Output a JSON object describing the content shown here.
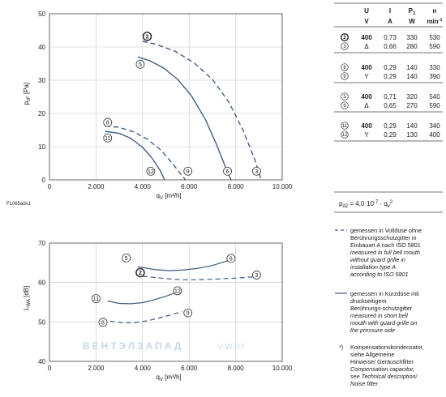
{
  "sheet_code": "FL065ads1",
  "colors": {
    "curve": "#3b5a86",
    "grid": "#c8c8c8",
    "frame": "#444444"
  },
  "table": {
    "headers": [
      "U",
      "I",
      "P1",
      "n"
    ],
    "units": [
      "V",
      "A",
      "W",
      "min-1"
    ],
    "groups": [
      [
        {
          "mark": "2",
          "mark_bold": true,
          "conn": "",
          "U": "400",
          "I": "0,73",
          "P": "330",
          "n": "530"
        },
        {
          "mark": "3",
          "mark_bold": false,
          "conn": "Δ",
          "U": "",
          "I": "0,66",
          "P": "280",
          "n": "590"
        }
      ],
      [
        {
          "mark": "8",
          "mark_bold": false,
          "conn": "",
          "U": "400",
          "I": "0,29",
          "P": "140",
          "n": "330"
        },
        {
          "mark": "9",
          "mark_bold": false,
          "conn": "Y",
          "U": "",
          "I": "0,29",
          "P": "140",
          "n": "390"
        }
      ],
      [
        {
          "mark": "5",
          "mark_bold": false,
          "conn": "",
          "U": "400",
          "I": "0,71",
          "P": "320",
          "n": "540"
        },
        {
          "mark": "6",
          "mark_bold": false,
          "conn": "Δ",
          "U": "",
          "I": "0,65",
          "P": "270",
          "n": "590"
        }
      ],
      [
        {
          "mark": "11",
          "mark_bold": false,
          "conn": "",
          "U": "400",
          "I": "0,29",
          "P": "140",
          "n": "340"
        },
        {
          "mark": "12",
          "mark_bold": false,
          "conn": "Y",
          "U": "",
          "I": "0,29",
          "P": "130",
          "n": "400"
        }
      ]
    ],
    "formula": "pd2 = 4,0·10-7 · qv2"
  },
  "legend": {
    "dashed": {
      "de": "gemessen in Volldüse ohne Berührungsschutzgitter in Einbauart A nach ISO 5801",
      "en": "measured in full bell mouth without guard grille in installation type A according to ISO 5801"
    },
    "solid": {
      "de": "gemessen in Kurzdüse mit druckseitigem Berührungs-schutzgitter",
      "en": "measured in short bell mouth with guard grille on the pressure side"
    },
    "footnote_mark": "*)",
    "footnote": {
      "de": "Kompensationskondensator, siehe Allgemeine Hinweise/ Geräuschfilter",
      "en": "Compensation capacitor, see Technical description/ Noise filter"
    }
  },
  "watermark": {
    "brand": "ВЕНТЭЛЗАПАД",
    "site": "V-W.BY"
  },
  "chart_data": [
    {
      "type": "line",
      "title": "",
      "xlabel": "qV [m³/h]",
      "ylabel": "psF [Pa]",
      "xlim": [
        0,
        10000
      ],
      "ylim": [
        0,
        50
      ],
      "xticks": [
        0,
        2000,
        4000,
        6000,
        8000,
        10000
      ],
      "xtick_labels": [
        "0",
        "2.000",
        "4.000",
        "6.000",
        "8.000",
        "10.000"
      ],
      "yticks": [
        0,
        10,
        20,
        30,
        40,
        50
      ],
      "grid": true,
      "series": [
        {
          "name": "2",
          "style": "dashed",
          "x": [
            4000,
            4600,
            5400,
            6200,
            7000,
            7700,
            8300,
            8800,
            9100
          ],
          "y": [
            41.7,
            40.8,
            38.7,
            35.3,
            30.3,
            23.5,
            15.2,
            6.5,
            0
          ]
        },
        {
          "name": "3",
          "style": "dashed",
          "x": [
            4000,
            4600,
            5400,
            6200,
            7000,
            7700,
            8300,
            8800,
            9100
          ],
          "y": [
            41.7,
            40.8,
            38.7,
            35.3,
            30.3,
            23.5,
            15.2,
            6.5,
            0
          ]
        },
        {
          "name": "5",
          "style": "solid",
          "x": [
            3800,
            4300,
            4900,
            5500,
            6100,
            6700,
            7200,
            7600,
            7800
          ],
          "y": [
            37.0,
            35.9,
            33.7,
            30.3,
            25.3,
            18.2,
            10.3,
            3.2,
            0
          ]
        },
        {
          "name": "6",
          "style": "solid",
          "x": [
            3800,
            4300,
            4900,
            5500,
            6100,
            6700,
            7200,
            7600,
            7800
          ],
          "y": [
            37.0,
            35.9,
            33.7,
            30.3,
            25.3,
            18.2,
            10.3,
            3.2,
            0
          ]
        },
        {
          "name": "8",
          "style": "dashed",
          "x": [
            2400,
            3000,
            3600,
            4200,
            4800,
            5300,
            5700,
            5850
          ],
          "y": [
            16.2,
            15.8,
            14.5,
            12.3,
            8.9,
            4.8,
            1.2,
            0
          ]
        },
        {
          "name": "9",
          "style": "dashed",
          "x": [
            2400,
            3000,
            3600,
            4200,
            4800,
            5300,
            5700,
            5850
          ],
          "y": [
            16.2,
            15.8,
            14.5,
            12.3,
            8.9,
            4.8,
            1.2,
            0
          ]
        },
        {
          "name": "11",
          "style": "solid",
          "x": [
            2400,
            3000,
            3500,
            4000,
            4400,
            4750,
            4950
          ],
          "y": [
            14.6,
            14.0,
            12.5,
            9.8,
            6.6,
            2.9,
            0
          ]
        },
        {
          "name": "12",
          "style": "solid",
          "x": [
            2400,
            3000,
            3500,
            4000,
            4400,
            4750,
            4950
          ],
          "y": [
            14.6,
            14.0,
            12.5,
            9.8,
            6.6,
            2.9,
            0
          ]
        }
      ],
      "markers": [
        {
          "label": "2",
          "bold": true,
          "x": 4200,
          "y": 43.2
        },
        {
          "label": "5",
          "bold": false,
          "x": 3900,
          "y": 34.8
        },
        {
          "label": "8",
          "bold": false,
          "x": 2500,
          "y": 17.3
        },
        {
          "label": "11",
          "bold": false,
          "x": 2500,
          "y": 12.6
        },
        {
          "label": "12",
          "bold": false,
          "x": 4350,
          "y": 2.6
        },
        {
          "label": "9",
          "bold": false,
          "x": 5950,
          "y": 2.6
        },
        {
          "label": "6",
          "bold": false,
          "x": 7650,
          "y": 2.6
        },
        {
          "label": "3",
          "bold": false,
          "x": 8900,
          "y": 2.6
        }
      ]
    },
    {
      "type": "line",
      "title": "",
      "xlabel": "qV [m³/h]",
      "ylabel": "LWA [dB]",
      "xlim": [
        0,
        10000
      ],
      "ylim": [
        40,
        70
      ],
      "xticks": [
        0,
        2000,
        4000,
        6000,
        8000,
        10000
      ],
      "xtick_labels": [
        "0",
        "2.000",
        "4.000",
        "6.000",
        "8.000",
        "10.000"
      ],
      "yticks": [
        40,
        50,
        60,
        70
      ],
      "grid": true,
      "series": [
        {
          "name": "5-6",
          "style": "solid",
          "x": [
            3800,
            4500,
            5200,
            5800,
            6400,
            7000,
            7700
          ],
          "y": [
            64.0,
            63.3,
            63.0,
            63.2,
            63.6,
            64.3,
            65.6
          ]
        },
        {
          "name": "2-3",
          "style": "dashed",
          "x": [
            4000,
            4800,
            5600,
            6400,
            7200,
            8000,
            8900
          ],
          "y": [
            61.6,
            61.1,
            60.7,
            60.7,
            60.9,
            61.1,
            61.5
          ]
        },
        {
          "name": "11-12",
          "style": "solid",
          "x": [
            2500,
            3000,
            3500,
            4000,
            4500,
            5000,
            5500
          ],
          "y": [
            55.3,
            54.7,
            54.6,
            54.9,
            55.6,
            56.5,
            57.6
          ]
        },
        {
          "name": "8-9",
          "style": "dashed",
          "x": [
            2600,
            3100,
            3600,
            4100,
            4600,
            5100,
            5700
          ],
          "y": [
            50.2,
            49.8,
            49.8,
            50.2,
            50.8,
            51.6,
            52.6
          ]
        }
      ],
      "markers": [
        {
          "label": "5",
          "bold": false,
          "x": 3300,
          "y": 66.2
        },
        {
          "label": "6",
          "bold": false,
          "x": 7800,
          "y": 66.1
        },
        {
          "label": "2",
          "bold": true,
          "x": 3900,
          "y": 62.5
        },
        {
          "label": "3",
          "bold": false,
          "x": 8900,
          "y": 61.9
        },
        {
          "label": "11",
          "bold": false,
          "x": 2000,
          "y": 55.9
        },
        {
          "label": "12",
          "bold": false,
          "x": 5500,
          "y": 57.9
        },
        {
          "label": "9",
          "bold": false,
          "x": 5950,
          "y": 52.3
        },
        {
          "label": "8",
          "bold": false,
          "x": 2300,
          "y": 49.9
        }
      ]
    }
  ]
}
